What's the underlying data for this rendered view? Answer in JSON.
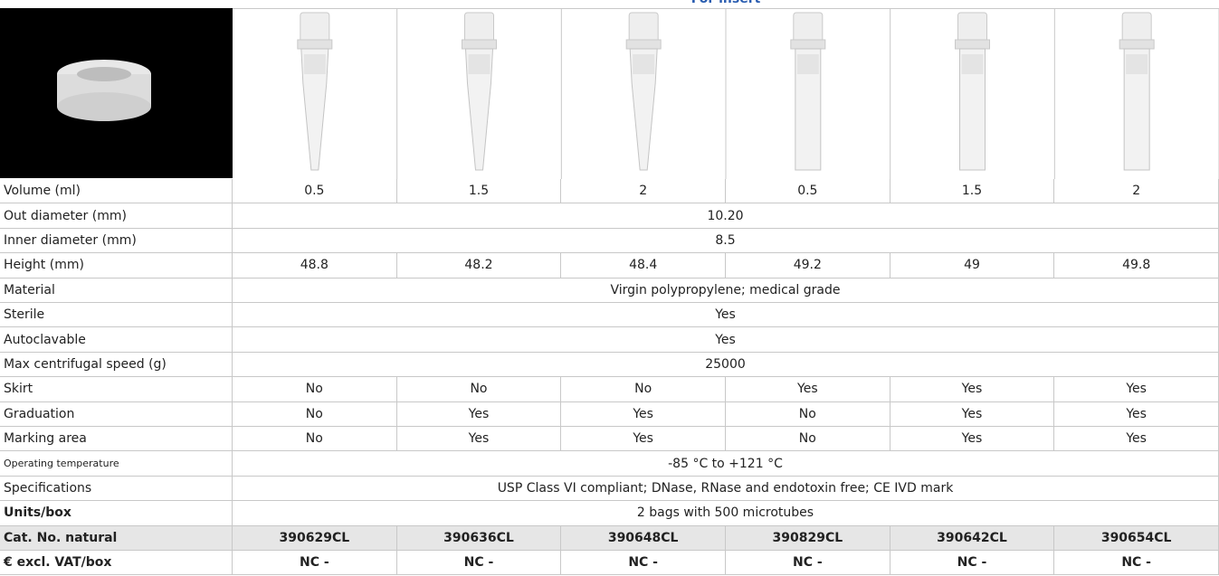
{
  "header": {
    "title": "For insert"
  },
  "table": {
    "rows": [
      {
        "label": "Volume (ml)",
        "values": [
          "0.5",
          "1.5",
          "2",
          "0.5",
          "1.5",
          "2"
        ]
      },
      {
        "label": "Out diameter (mm)",
        "value": "10.20"
      },
      {
        "label": "Inner diameter (mm)",
        "value": "8.5"
      },
      {
        "label": "Height (mm)",
        "values": [
          "48.8",
          "48.2",
          "48.4",
          "49.2",
          "49",
          "49.8"
        ]
      },
      {
        "label": "Material",
        "value": "Virgin polypropylene; medical grade"
      },
      {
        "label": "Sterile",
        "value": "Yes"
      },
      {
        "label": "Autoclavable",
        "value": "Yes"
      },
      {
        "label": "Max centrifugal speed (g)",
        "value": "25000"
      },
      {
        "label": "Skirt",
        "values": [
          "No",
          "No",
          "No",
          "Yes",
          "Yes",
          "Yes"
        ]
      },
      {
        "label": "Graduation",
        "values": [
          "No",
          "Yes",
          "Yes",
          "No",
          "Yes",
          "Yes"
        ]
      },
      {
        "label": "Marking area",
        "values": [
          "No",
          "Yes",
          "Yes",
          "No",
          "Yes",
          "Yes"
        ]
      },
      {
        "label": "Operating temperature",
        "value": "-85 °C to +121 °C"
      },
      {
        "label": "Specifications",
        "value": "USP Class VI compliant; DNase, RNase and endotoxin free; CE IVD mark"
      },
      {
        "label": "Units/box",
        "value": "2 bags with 500 microtubes"
      },
      {
        "label": "Cat. No. natural",
        "values": [
          "390629CL",
          "390636CL",
          "390648CL",
          "390829CL",
          "390642CL",
          "390654CL"
        ]
      },
      {
        "label": "€ excl. VAT/box",
        "values": [
          "NC -",
          "NC -",
          "NC -",
          "NC -",
          "NC -",
          "NC -"
        ]
      }
    ]
  }
}
